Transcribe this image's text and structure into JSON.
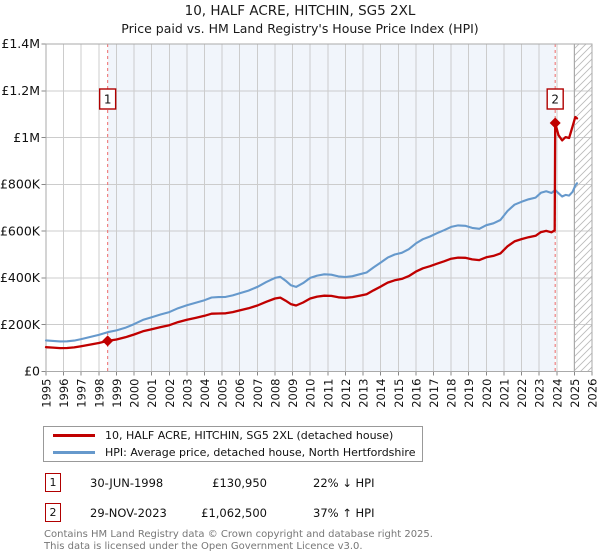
{
  "colors": {
    "red": "#c00000",
    "blue": "#6699cc",
    "shade": "#f1f5fb",
    "grid": "#cccccc",
    "border": "#aaaaaa",
    "dashed_line": "#ee7777",
    "hatch": "#bbbbbb",
    "marker_box_border": "#b00000",
    "footer_text": "#777777"
  },
  "chart_data": {
    "type": "line",
    "title": "10, HALF ACRE, HITCHIN, SG5 2XL",
    "subtitle": "Price paid vs. HM Land Registry's House Price Index (HPI)",
    "xlabel": "",
    "ylabel": "",
    "xlim": [
      1995,
      2026
    ],
    "ylim": [
      0,
      1400000
    ],
    "grid": true,
    "legend_position": "below-left",
    "x_ticks": [
      1995,
      1996,
      1997,
      1998,
      1999,
      2000,
      2001,
      2002,
      2003,
      2004,
      2005,
      2006,
      2007,
      2008,
      2009,
      2010,
      2011,
      2012,
      2013,
      2014,
      2015,
      2016,
      2017,
      2018,
      2019,
      2020,
      2021,
      2022,
      2023,
      2024,
      2025,
      2026
    ],
    "y_ticks": [
      {
        "value": 0,
        "label": "£0"
      },
      {
        "value": 200000,
        "label": "£200K"
      },
      {
        "value": 400000,
        "label": "£400K"
      },
      {
        "value": 600000,
        "label": "£600K"
      },
      {
        "value": 800000,
        "label": "£800K"
      },
      {
        "value": 1000000,
        "label": "£1M"
      },
      {
        "value": 1200000,
        "label": "£1.2M"
      },
      {
        "value": 1400000,
        "label": "£1.4M"
      }
    ],
    "background_shading": {
      "from": 1998.5,
      "to": 2023.91
    },
    "future_hatch": {
      "from": 2025,
      "to": 2026
    },
    "sale_markers": [
      {
        "label": "1",
        "x": 1998.5,
        "price": 130950,
        "date": "30-JUN-1998",
        "price_label": "£130,950",
        "hpi_relation": "22% ↓ HPI"
      },
      {
        "label": "2",
        "x": 2023.91,
        "price": 1062500,
        "date": "29-NOV-2023",
        "price_label": "£1,062,500",
        "hpi_relation": "37% ↑ HPI"
      }
    ],
    "series": [
      {
        "name": "10, HALF ACRE, HITCHIN, SG5 2XL (detached house)",
        "color": "#c00000",
        "points": [
          [
            1995.0,
            104000
          ],
          [
            1995.4,
            102000
          ],
          [
            1995.8,
            100000
          ],
          [
            1996.2,
            100500
          ],
          [
            1996.6,
            103000
          ],
          [
            1997.0,
            108000
          ],
          [
            1997.5,
            115000
          ],
          [
            1998.0,
            122000
          ],
          [
            1998.5,
            130950
          ],
          [
            1999.0,
            137000
          ],
          [
            1999.5,
            146000
          ],
          [
            2000.0,
            158000
          ],
          [
            2000.5,
            172000
          ],
          [
            2001.0,
            181000
          ],
          [
            2001.5,
            190000
          ],
          [
            2002.0,
            198000
          ],
          [
            2002.5,
            211000
          ],
          [
            2003.0,
            221000
          ],
          [
            2003.5,
            229000
          ],
          [
            2004.0,
            238000
          ],
          [
            2004.4,
            247000
          ],
          [
            2004.8,
            248000
          ],
          [
            2005.2,
            249000
          ],
          [
            2005.6,
            254000
          ],
          [
            2006.0,
            261000
          ],
          [
            2006.5,
            270000
          ],
          [
            2007.0,
            282000
          ],
          [
            2007.5,
            298000
          ],
          [
            2008.0,
            312000
          ],
          [
            2008.3,
            316000
          ],
          [
            2008.6,
            303000
          ],
          [
            2008.9,
            288000
          ],
          [
            2009.2,
            282000
          ],
          [
            2009.6,
            295000
          ],
          [
            2010.0,
            312000
          ],
          [
            2010.4,
            320000
          ],
          [
            2010.8,
            324000
          ],
          [
            2011.2,
            323000
          ],
          [
            2011.6,
            317000
          ],
          [
            2012.0,
            315000
          ],
          [
            2012.4,
            318000
          ],
          [
            2012.8,
            324000
          ],
          [
            2013.2,
            330000
          ],
          [
            2013.6,
            347000
          ],
          [
            2014.0,
            363000
          ],
          [
            2014.4,
            380000
          ],
          [
            2014.8,
            390000
          ],
          [
            2015.2,
            396000
          ],
          [
            2015.6,
            408000
          ],
          [
            2016.0,
            427000
          ],
          [
            2016.4,
            441000
          ],
          [
            2016.8,
            450000
          ],
          [
            2017.2,
            461000
          ],
          [
            2017.6,
            471000
          ],
          [
            2018.0,
            482000
          ],
          [
            2018.4,
            487000
          ],
          [
            2018.8,
            486000
          ],
          [
            2019.2,
            479000
          ],
          [
            2019.6,
            476000
          ],
          [
            2020.0,
            488000
          ],
          [
            2020.4,
            494000
          ],
          [
            2020.8,
            505000
          ],
          [
            2021.2,
            535000
          ],
          [
            2021.6,
            556000
          ],
          [
            2022.0,
            566000
          ],
          [
            2022.4,
            574000
          ],
          [
            2022.8,
            580000
          ],
          [
            2023.1,
            596000
          ],
          [
            2023.4,
            601000
          ],
          [
            2023.7,
            595000
          ],
          [
            2023.88,
            603000
          ],
          [
            2023.91,
            1062500
          ],
          [
            2024.1,
            1010000
          ],
          [
            2024.3,
            988000
          ],
          [
            2024.5,
            1002000
          ],
          [
            2024.7,
            998000
          ],
          [
            2024.9,
            1048000
          ],
          [
            2025.05,
            1088000
          ],
          [
            2025.15,
            1082000
          ]
        ]
      },
      {
        "name": "HPI: Average price, detached house, North Hertfordshire",
        "color": "#6699cc",
        "points": [
          [
            1995.0,
            133000
          ],
          [
            1995.4,
            131000
          ],
          [
            1995.8,
            128500
          ],
          [
            1996.2,
            129000
          ],
          [
            1996.6,
            132000
          ],
          [
            1997.0,
            138500
          ],
          [
            1997.5,
            147500
          ],
          [
            1998.0,
            156500
          ],
          [
            1998.5,
            167900
          ],
          [
            1999.0,
            175500
          ],
          [
            1999.5,
            187000
          ],
          [
            2000.0,
            202500
          ],
          [
            2000.5,
            220500
          ],
          [
            2001.0,
            232000
          ],
          [
            2001.5,
            243500
          ],
          [
            2002.0,
            254000
          ],
          [
            2002.5,
            270500
          ],
          [
            2003.0,
            283000
          ],
          [
            2003.5,
            293500
          ],
          [
            2004.0,
            305000
          ],
          [
            2004.4,
            316500
          ],
          [
            2004.8,
            318000
          ],
          [
            2005.2,
            319000
          ],
          [
            2005.6,
            325500
          ],
          [
            2006.0,
            334500
          ],
          [
            2006.5,
            346000
          ],
          [
            2007.0,
            361500
          ],
          [
            2007.5,
            382000
          ],
          [
            2008.0,
            400000
          ],
          [
            2008.3,
            405000
          ],
          [
            2008.6,
            388500
          ],
          [
            2008.9,
            369000
          ],
          [
            2009.2,
            361500
          ],
          [
            2009.6,
            378000
          ],
          [
            2010.0,
            400000
          ],
          [
            2010.4,
            410000
          ],
          [
            2010.8,
            415500
          ],
          [
            2011.2,
            414000
          ],
          [
            2011.6,
            406500
          ],
          [
            2012.0,
            404000
          ],
          [
            2012.4,
            407500
          ],
          [
            2012.8,
            415500
          ],
          [
            2013.2,
            423000
          ],
          [
            2013.6,
            445000
          ],
          [
            2014.0,
            465500
          ],
          [
            2014.4,
            487000
          ],
          [
            2014.8,
            500000
          ],
          [
            2015.2,
            507500
          ],
          [
            2015.6,
            523000
          ],
          [
            2016.0,
            547500
          ],
          [
            2016.4,
            565500
          ],
          [
            2016.8,
            577000
          ],
          [
            2017.2,
            591000
          ],
          [
            2017.6,
            604000
          ],
          [
            2018.0,
            618000
          ],
          [
            2018.4,
            624500
          ],
          [
            2018.8,
            623000
          ],
          [
            2019.2,
            614000
          ],
          [
            2019.6,
            610000
          ],
          [
            2020.0,
            625500
          ],
          [
            2020.4,
            633500
          ],
          [
            2020.8,
            647500
          ],
          [
            2021.2,
            686000
          ],
          [
            2021.6,
            713000
          ],
          [
            2022.0,
            725500
          ],
          [
            2022.4,
            736000
          ],
          [
            2022.8,
            743500
          ],
          [
            2023.1,
            764000
          ],
          [
            2023.4,
            770500
          ],
          [
            2023.7,
            763000
          ],
          [
            2023.91,
            775500
          ],
          [
            2024.1,
            762000
          ],
          [
            2024.3,
            748000
          ],
          [
            2024.5,
            755000
          ],
          [
            2024.7,
            752000
          ],
          [
            2024.9,
            768000
          ],
          [
            2025.05,
            795000
          ],
          [
            2025.15,
            805000
          ]
        ]
      }
    ]
  },
  "footer": {
    "line1": "Contains HM Land Registry data © Crown copyright and database right 2025.",
    "line2": "This data is licensed under the Open Government Licence v3.0."
  }
}
